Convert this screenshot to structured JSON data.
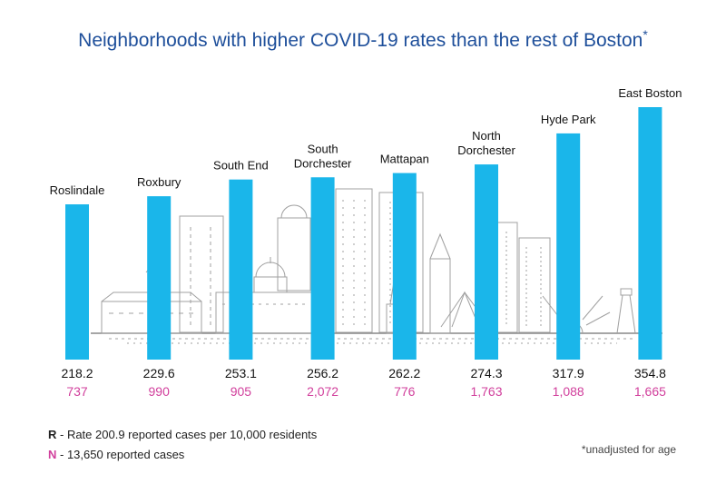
{
  "title": "Neighborhoods with higher COVID-19 rates than the rest of Boston",
  "title_mark": "*",
  "colors": {
    "bar": "#1ab6ea",
    "rate": "#111111",
    "cases": "#d13f9c",
    "title": "#1d4e9a",
    "skyline": "#9a9a9a"
  },
  "chart_data": {
    "type": "bar",
    "title": "Neighborhoods with higher COVID-19 rates than the rest of Boston",
    "categories": [
      "Roslindale",
      "Roxbury",
      "South End",
      "South Dorchester",
      "Mattapan",
      "North Dorchester",
      "Hyde Park",
      "East Boston"
    ],
    "label_lines": [
      [
        "Roslindale"
      ],
      [
        "Roxbury"
      ],
      [
        "South End"
      ],
      [
        "South",
        "Dorchester"
      ],
      [
        "Mattapan"
      ],
      [
        "North",
        "Dorchester"
      ],
      [
        "Hyde Park"
      ],
      [
        "East Boston"
      ]
    ],
    "series": [
      {
        "name": "R",
        "values": [
          218.2,
          229.6,
          253.1,
          256.2,
          262.2,
          274.3,
          317.9,
          354.8
        ],
        "labels": [
          "218.2",
          "229.6",
          "253.1",
          "256.2",
          "262.2",
          "274.3",
          "317.9",
          "354.8"
        ]
      },
      {
        "name": "N",
        "values": [
          737,
          990,
          905,
          2072,
          776,
          1763,
          1088,
          1665
        ],
        "labels": [
          "737",
          "990",
          "905",
          "2,072",
          "776",
          "1,763",
          "1,088",
          "1,665"
        ]
      }
    ],
    "ylim": [
      0,
      354.8
    ],
    "grid": false,
    "legend": "bottom-left"
  },
  "legend": {
    "rate": {
      "key": "R",
      "text": " - Rate 200.9 reported cases per 10,000 residents"
    },
    "cases": {
      "key": "N",
      "text": " - 13,650 reported cases"
    }
  },
  "footnote": "*unadjusted for age"
}
